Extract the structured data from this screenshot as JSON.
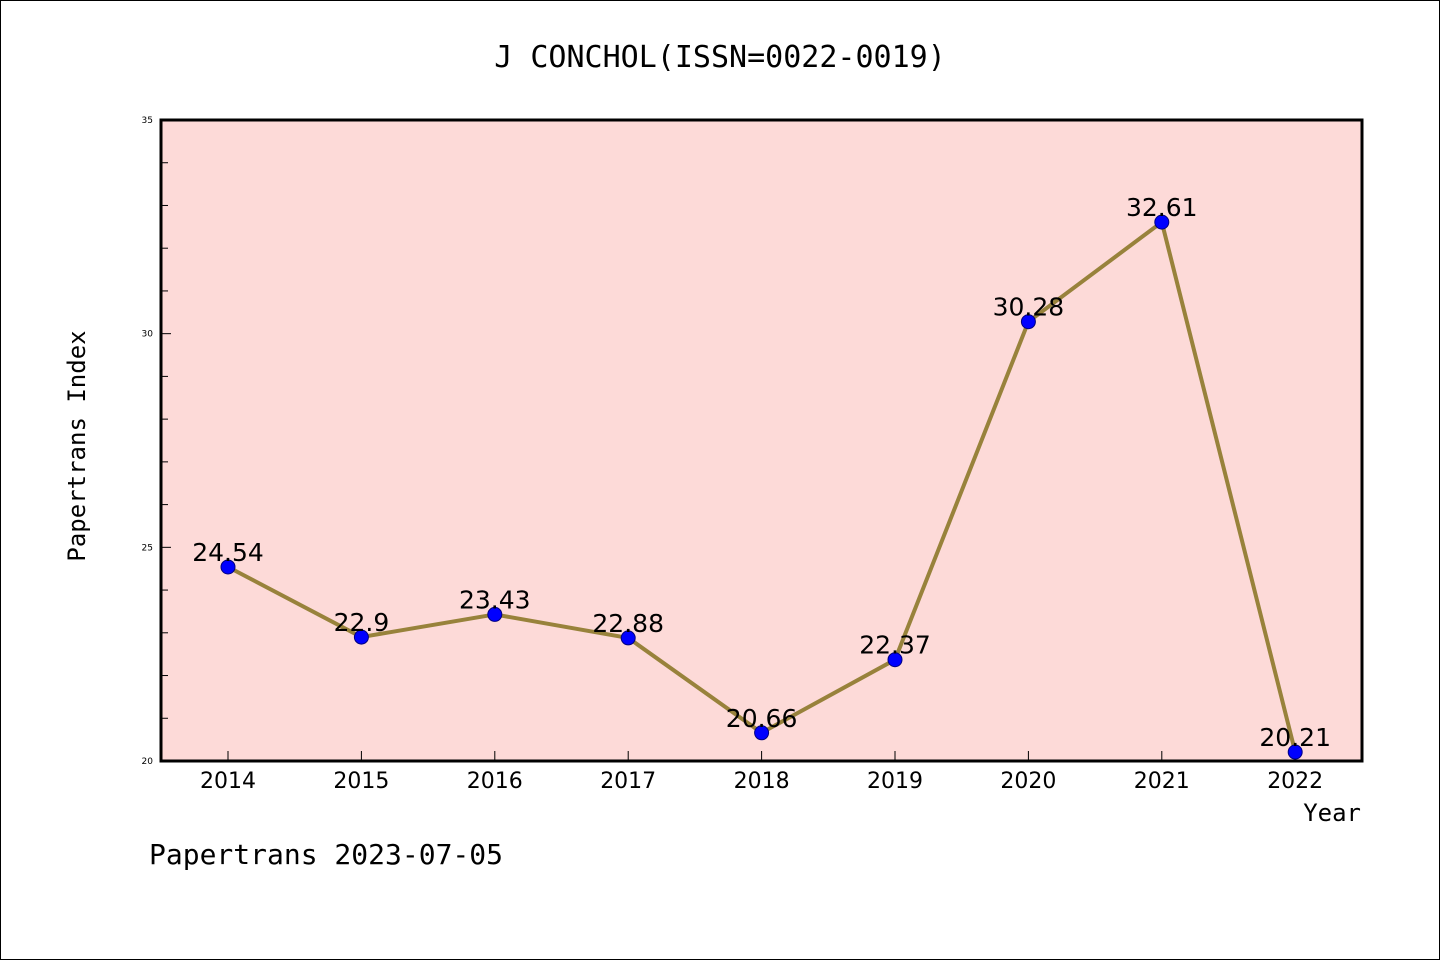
{
  "chart_data": {
    "type": "line",
    "title": "J CONCHOL(ISSN=0022-0019)",
    "xlabel": "Year",
    "ylabel": "Papertrans Index",
    "categories": [
      "2014",
      "2015",
      "2016",
      "2017",
      "2018",
      "2019",
      "2020",
      "2021",
      "2022"
    ],
    "series": [
      {
        "values": [
          24.54,
          22.9,
          23.43,
          22.88,
          20.66,
          22.37,
          30.28,
          32.61,
          20.21
        ],
        "labels": [
          "24.54",
          "22.9",
          "23.43",
          "22.88",
          "20.66",
          "22.37",
          "30.28",
          "32.61",
          "20.21"
        ]
      }
    ],
    "ylim": [
      20,
      35
    ],
    "yticks": [
      20,
      25,
      30,
      35
    ],
    "ytick_labels": [
      "20",
      "25",
      "30",
      "35"
    ],
    "grid": false,
    "colors": {
      "plot_background": "#fddad8",
      "line": "#98823b",
      "marker": "#0000ff",
      "marker_edge": "#000080"
    }
  },
  "footer": "Papertrans 2023-07-05"
}
